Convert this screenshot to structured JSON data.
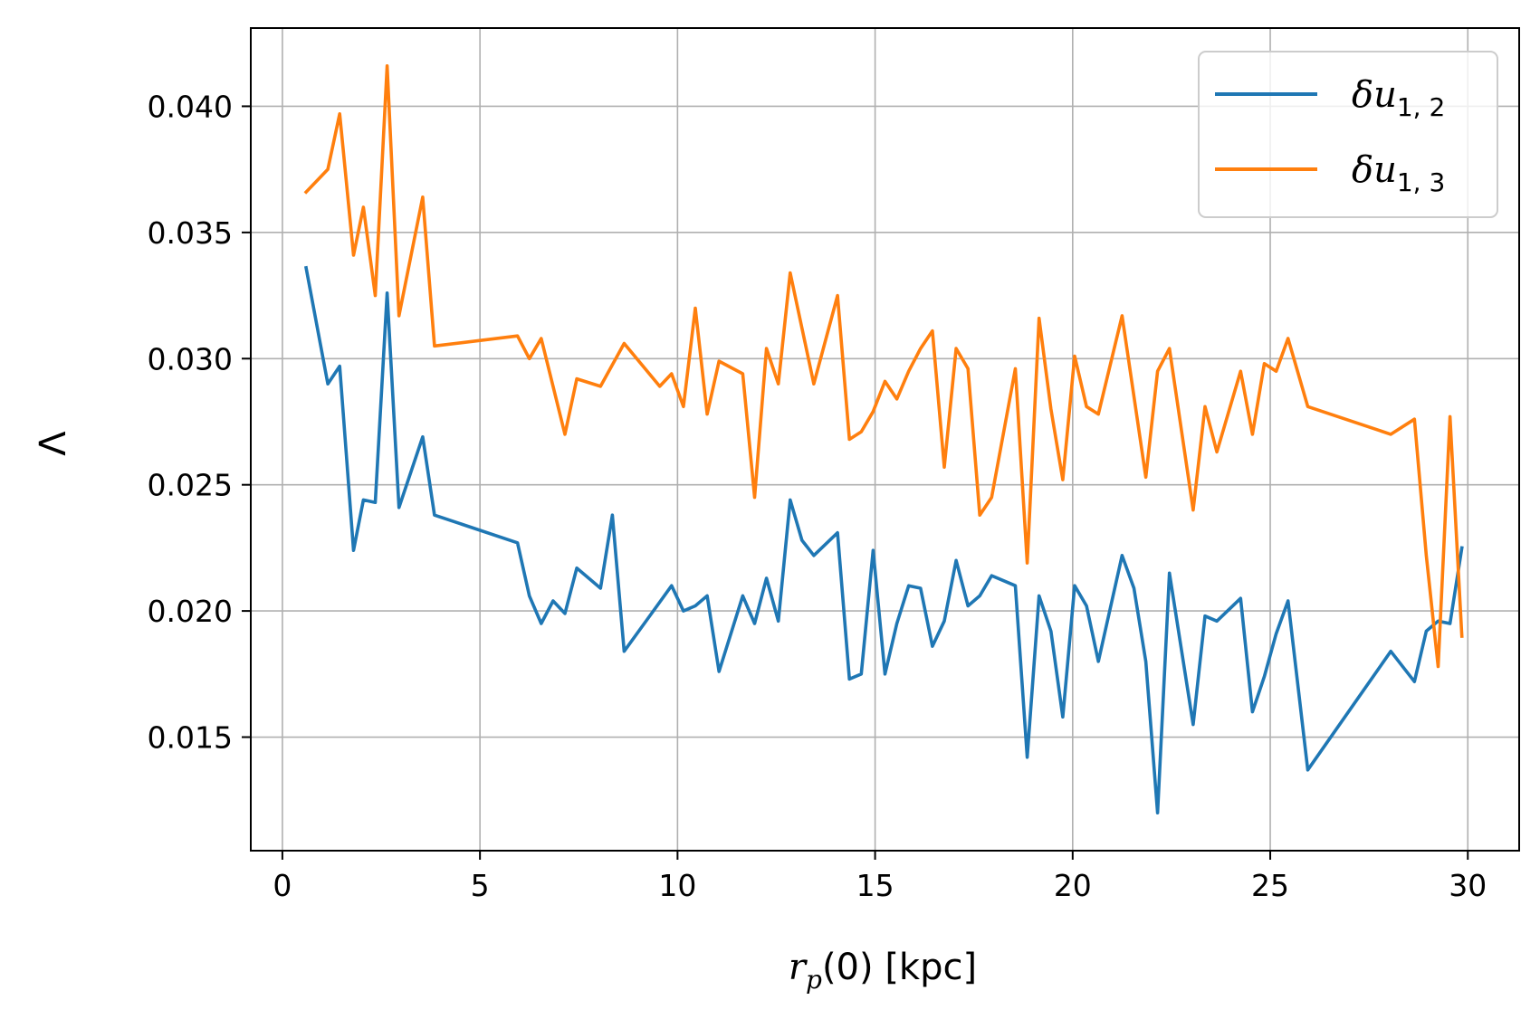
{
  "chart_data": {
    "type": "line",
    "title": "",
    "xlabel": "r_p(0) [kpc]",
    "xlabel_parts": {
      "main": "r",
      "sub": "p",
      "rest": "(0) [kpc]"
    },
    "ylabel": "Λ",
    "xlim": [
      -0.8,
      31.3
    ],
    "ylim": [
      0.0105,
      0.0431
    ],
    "xticks": [
      0,
      5,
      10,
      15,
      20,
      25,
      30
    ],
    "yticks": [
      0.015,
      0.02,
      0.025,
      0.03,
      0.035,
      0.04
    ],
    "ytick_labels": [
      "0.015",
      "0.020",
      "0.025",
      "0.030",
      "0.035",
      "0.040"
    ],
    "grid": true,
    "legend_position": "top-right",
    "series": [
      {
        "name": "δu1,2",
        "name_parts": {
          "main": "δu",
          "sub": "1, 2"
        },
        "color": "#1f77b4",
        "x": [
          0.6,
          1.15,
          1.45,
          1.8,
          2.05,
          2.35,
          2.65,
          2.95,
          3.55,
          3.85,
          5.95,
          6.25,
          6.55,
          6.85,
          7.15,
          7.45,
          8.05,
          8.35,
          8.65,
          9.25,
          9.85,
          10.15,
          10.45,
          10.75,
          11.05,
          11.65,
          11.95,
          12.25,
          12.55,
          12.85,
          13.15,
          13.45,
          14.05,
          14.35,
          14.65,
          14.95,
          15.25,
          15.55,
          15.85,
          16.15,
          16.45,
          16.75,
          17.05,
          17.35,
          17.65,
          17.95,
          18.55,
          18.85,
          19.15,
          19.45,
          19.75,
          20.05,
          20.35,
          20.65,
          21.25,
          21.55,
          21.85,
          22.15,
          22.45,
          23.05,
          23.35,
          23.65,
          24.25,
          24.55,
          24.85,
          25.15,
          25.45,
          25.95,
          28.05,
          28.65,
          28.95,
          29.25,
          29.55,
          29.85
        ],
        "y": [
          0.0336,
          0.029,
          0.0297,
          0.0224,
          0.0244,
          0.0243,
          0.0326,
          0.0241,
          0.0269,
          0.0238,
          0.0227,
          0.0206,
          0.0195,
          0.0204,
          0.0199,
          0.0217,
          0.0209,
          0.0238,
          0.0184,
          0.0197,
          0.021,
          0.02,
          0.0202,
          0.0206,
          0.0176,
          0.0206,
          0.0195,
          0.0213,
          0.0196,
          0.0244,
          0.0228,
          0.0222,
          0.0231,
          0.0173,
          0.0175,
          0.0224,
          0.0175,
          0.0195,
          0.021,
          0.0209,
          0.0186,
          0.0196,
          0.022,
          0.0202,
          0.0206,
          0.0214,
          0.021,
          0.0142,
          0.0206,
          0.0192,
          0.0158,
          0.021,
          0.0202,
          0.018,
          0.0222,
          0.0209,
          0.018,
          0.012,
          0.0215,
          0.0155,
          0.0198,
          0.0196,
          0.0205,
          0.016,
          0.0174,
          0.0191,
          0.0204,
          0.0137,
          0.0184,
          0.0172,
          0.0192,
          0.0196,
          0.0195,
          0.0225
        ]
      },
      {
        "name": "δu1,3",
        "name_parts": {
          "main": "δu",
          "sub": "1, 3"
        },
        "color": "#ff7f0e",
        "x": [
          0.6,
          1.15,
          1.45,
          1.8,
          2.05,
          2.35,
          2.65,
          2.95,
          3.55,
          3.85,
          5.95,
          6.25,
          6.55,
          7.15,
          7.45,
          8.05,
          8.65,
          9.55,
          9.85,
          10.15,
          10.45,
          10.75,
          11.05,
          11.65,
          11.95,
          12.25,
          12.55,
          12.85,
          13.45,
          14.05,
          14.35,
          14.65,
          14.95,
          15.25,
          15.55,
          15.85,
          16.15,
          16.45,
          16.75,
          17.05,
          17.35,
          17.65,
          17.95,
          18.55,
          18.85,
          19.15,
          19.45,
          19.75,
          20.05,
          20.35,
          20.65,
          21.25,
          21.85,
          22.15,
          22.45,
          23.05,
          23.35,
          23.65,
          24.25,
          24.55,
          24.85,
          25.15,
          25.45,
          25.95,
          28.05,
          28.65,
          28.95,
          29.25,
          29.55,
          29.85
        ],
        "y": [
          0.0366,
          0.0375,
          0.0397,
          0.0341,
          0.036,
          0.0325,
          0.0416,
          0.0317,
          0.0364,
          0.0305,
          0.0309,
          0.03,
          0.0308,
          0.027,
          0.0292,
          0.0289,
          0.0306,
          0.0289,
          0.0294,
          0.0281,
          0.032,
          0.0278,
          0.0299,
          0.0294,
          0.0245,
          0.0304,
          0.029,
          0.0334,
          0.029,
          0.0325,
          0.0268,
          0.0271,
          0.0279,
          0.0291,
          0.0284,
          0.0295,
          0.0304,
          0.0311,
          0.0257,
          0.0304,
          0.0296,
          0.0238,
          0.0245,
          0.0296,
          0.0219,
          0.0316,
          0.028,
          0.0252,
          0.0301,
          0.0281,
          0.0278,
          0.0317,
          0.0253,
          0.0295,
          0.0304,
          0.024,
          0.0281,
          0.0263,
          0.0295,
          0.027,
          0.0298,
          0.0295,
          0.0308,
          0.0281,
          0.027,
          0.0276,
          0.0222,
          0.0178,
          0.0277,
          0.019
        ]
      }
    ]
  }
}
